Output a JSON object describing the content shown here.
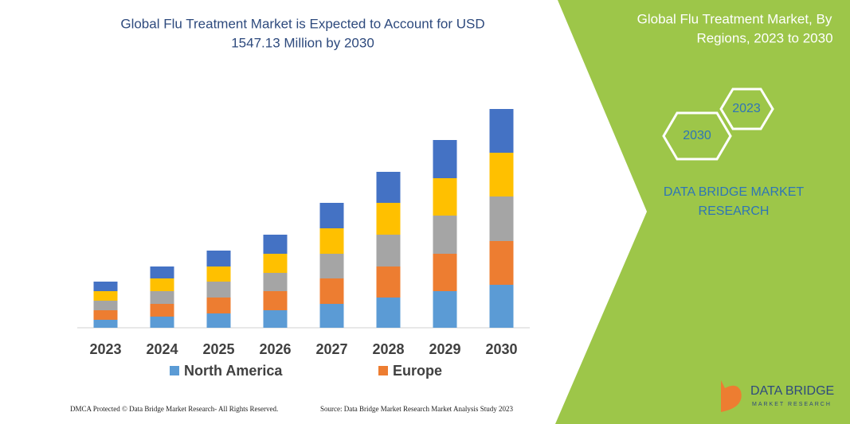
{
  "chart_data": {
    "type": "stacked_bar",
    "title": "Global Flu Treatment Market is Expected to Account for USD",
    "subtitle": "1547.13 Million by 2030",
    "categories": [
      "2023",
      "2024",
      "2025",
      "2026",
      "2027",
      "2028",
      "2029",
      "2030"
    ],
    "series": [
      {
        "name": "North America",
        "color": "#5b9bd5",
        "values": [
          10,
          14,
          18,
          22,
          30,
          38,
          46,
          54
        ]
      },
      {
        "name": "Europe",
        "color": "#ed7d31",
        "values": [
          12,
          16,
          20,
          24,
          32,
          39,
          47,
          55
        ]
      },
      {
        "color": "#a5a5a5",
        "values": [
          12,
          16,
          20,
          23,
          31,
          40,
          48,
          56
        ]
      },
      {
        "color": "#ffc000",
        "values": [
          12,
          16,
          19,
          24,
          32,
          40,
          47,
          55
        ]
      },
      {
        "color": "#4472c4",
        "values": [
          12,
          15,
          20,
          24,
          32,
          39,
          48,
          55
        ]
      }
    ],
    "ylim": [
      0,
      290
    ]
  },
  "panel": {
    "title_line1": "Global Flu Treatment Market, By",
    "title_line2": "Regions, 2023 to 2030",
    "hex_start": "2023",
    "hex_end": "2030",
    "brand_line1": "DATA BRIDGE MARKET",
    "brand_line2": "RESEARCH",
    "logo_name": "DATA BRIDGE",
    "logo_sub": "MARKET RESEARCH"
  },
  "footer": {
    "left": "DMCA Protected © Data Bridge Market Research-  All Rights Reserved.",
    "right": "Source: Data Bridge Market Research  Market Analysis Study 2023"
  }
}
